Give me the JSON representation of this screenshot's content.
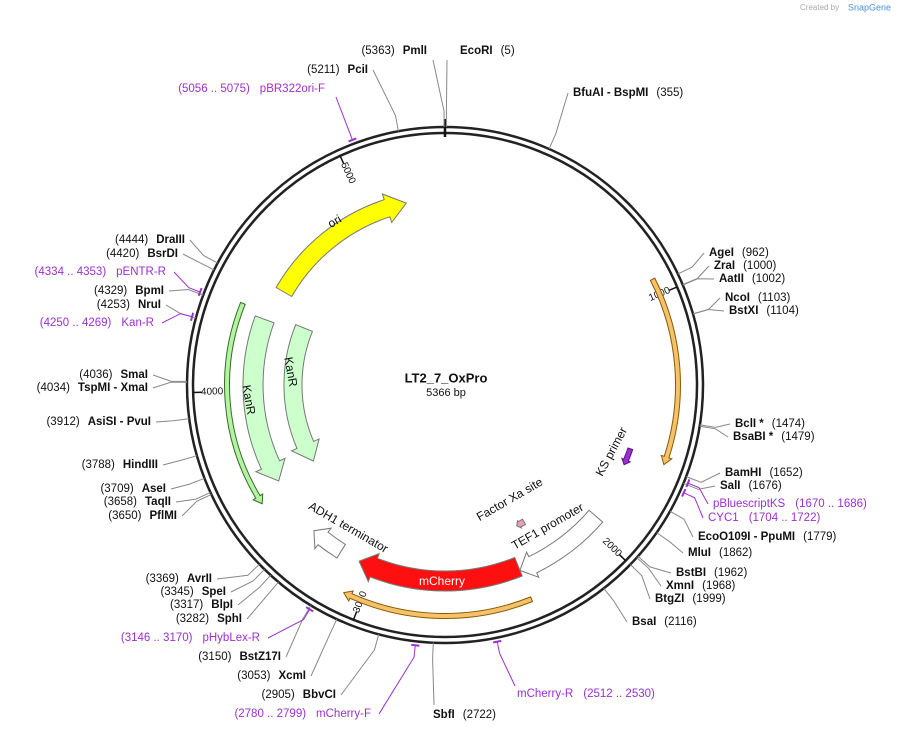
{
  "watermark": {
    "prefix": "Created by",
    "brand": "SnapGene"
  },
  "title": "LT2_7_OxPro",
  "subtitle": "5366 bp",
  "ring_ticks": [
    "1000",
    "2000",
    "3000",
    "4000",
    "5000"
  ],
  "sites": [
    {
      "name": "PmlI",
      "pos": "(5363)"
    },
    {
      "name": "EcoRI",
      "pos": "(5)"
    },
    {
      "name": "PciI",
      "pos": "(5211)"
    },
    {
      "name": "BfuAI  - BspMI",
      "pos": "(355)"
    },
    {
      "name": "AgeI",
      "pos": "(962)"
    },
    {
      "name": "ZraI",
      "pos": "(1000)"
    },
    {
      "name": "AatII",
      "pos": "(1002)"
    },
    {
      "name": "NcoI",
      "pos": "(1103)"
    },
    {
      "name": "BstXI",
      "pos": "(1104)"
    },
    {
      "name": "BclI *",
      "pos": "(1474)"
    },
    {
      "name": "BsaBI *",
      "pos": "(1479)"
    },
    {
      "name": "BamHI",
      "pos": "(1652)"
    },
    {
      "name": "SalI",
      "pos": "(1676)"
    },
    {
      "name": "EcoO109I  - PpuMI",
      "pos": "(1779)"
    },
    {
      "name": "MluI",
      "pos": "(1862)"
    },
    {
      "name": "BstBI",
      "pos": "(1962)"
    },
    {
      "name": "XmnI",
      "pos": "(1968)"
    },
    {
      "name": "BtgZI",
      "pos": "(1999)"
    },
    {
      "name": "BsaI",
      "pos": "(2116)"
    },
    {
      "name": "SbfI",
      "pos": "(2722)"
    },
    {
      "name": "BbvCI",
      "pos": "(2905)"
    },
    {
      "name": "XcmI",
      "pos": "(3053)"
    },
    {
      "name": "BstZ17I",
      "pos": "(3150)"
    },
    {
      "name": "SphI",
      "pos": "(3282)"
    },
    {
      "name": "BlpI",
      "pos": "(3317)"
    },
    {
      "name": "SpeI",
      "pos": "(3345)"
    },
    {
      "name": "AvrII",
      "pos": "(3369)"
    },
    {
      "name": "PflMI",
      "pos": "(3650)"
    },
    {
      "name": "TaqII",
      "pos": "(3658)"
    },
    {
      "name": "AseI",
      "pos": "(3709)"
    },
    {
      "name": "HindIII",
      "pos": "(3788)"
    },
    {
      "name": "AsiSI  - PvuI",
      "pos": "(3912)"
    },
    {
      "name": "TspMI  - XmaI",
      "pos": "(4034)"
    },
    {
      "name": "SmaI",
      "pos": "(4036)"
    },
    {
      "name": "NruI",
      "pos": "(4253)"
    },
    {
      "name": "BpmI",
      "pos": "(4329)"
    },
    {
      "name": "BsrDI",
      "pos": "(4420)"
    },
    {
      "name": "DraIII",
      "pos": "(4444)"
    }
  ],
  "primers": [
    {
      "name": "pBR322ori-F",
      "range": "(5056 .. 5075)"
    },
    {
      "name": "pBluescriptKS",
      "range": "(1670 .. 1686)"
    },
    {
      "name": "CYC1",
      "range": "(1704 .. 1722)"
    },
    {
      "name": "mCherry-R",
      "range": "(2512 .. 2530)"
    },
    {
      "name": "mCherry-F",
      "range": "(2780 .. 2799)"
    },
    {
      "name": "pHybLex-R",
      "range": "(3146 .. 3170)"
    },
    {
      "name": "Kan-R",
      "range": "(4250 .. 4269)"
    },
    {
      "name": "pENTR-R",
      "range": "(4334 .. 4353)"
    }
  ],
  "features": [
    "ori",
    "KanR",
    "KanR",
    "ADH1 terminator",
    "mCherry",
    "TEF1 promoter",
    "Factor Xa site",
    "KS primer"
  ]
}
